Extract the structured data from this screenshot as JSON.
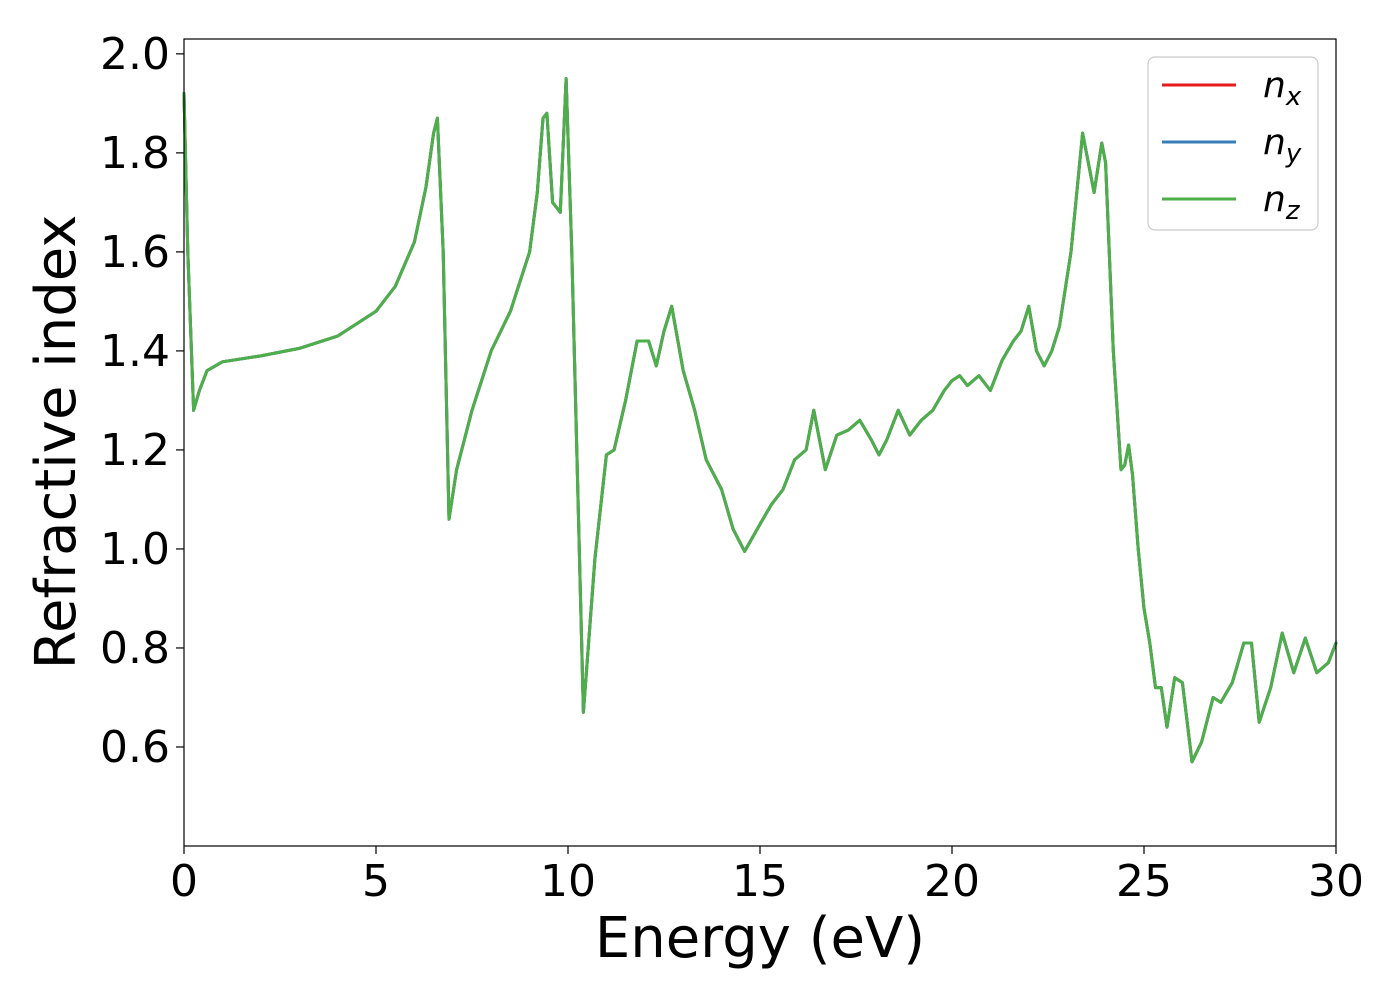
{
  "chart_data": {
    "type": "line",
    "xlabel": "Energy (eV)",
    "ylabel": "Refractive index",
    "xlim": [
      0,
      30
    ],
    "ylim": [
      0.4,
      2.03
    ],
    "xticks": [
      0,
      5,
      10,
      15,
      20,
      25,
      30
    ],
    "yticks": [
      0.6,
      0.8,
      1.0,
      1.2,
      1.4,
      1.6,
      1.8,
      2.0
    ],
    "xtick_labels": [
      "0",
      "5",
      "10",
      "15",
      "20",
      "25",
      "30"
    ],
    "ytick_labels": [
      "0.6",
      "0.8",
      "1.0",
      "1.2",
      "1.4",
      "1.6",
      "1.8",
      "2.0"
    ],
    "grid": false,
    "legend_position": "top-right",
    "series": [
      {
        "name_base": "n",
        "name_sub": "x",
        "color": "#e41a1c",
        "x": [
          0.0,
          0.1,
          0.25,
          0.4,
          0.6,
          1.0,
          2.0,
          3.0,
          4.0,
          5.0,
          5.5,
          6.0,
          6.3,
          6.5,
          6.6,
          6.75,
          6.9,
          7.1,
          7.5,
          8.0,
          8.5,
          9.0,
          9.2,
          9.35,
          9.45,
          9.6,
          9.8,
          9.95,
          10.1,
          10.4,
          10.7,
          11.0,
          11.2,
          11.5,
          11.8,
          12.1,
          12.3,
          12.5,
          12.7,
          13.0,
          13.3,
          13.6,
          14.0,
          14.3,
          14.6,
          15.0,
          15.3,
          15.6,
          15.9,
          16.2,
          16.4,
          16.7,
          17.0,
          17.3,
          17.6,
          17.9,
          18.1,
          18.3,
          18.6,
          18.9,
          19.2,
          19.5,
          19.8,
          20.0,
          20.2,
          20.4,
          20.7,
          21.0,
          21.3,
          21.6,
          21.8,
          22.0,
          22.2,
          22.4,
          22.6,
          22.8,
          23.1,
          23.4,
          23.7,
          23.9,
          24.0,
          24.2,
          24.4,
          24.5,
          24.6,
          24.7,
          24.85,
          25.0,
          25.15,
          25.3,
          25.45,
          25.6,
          25.8,
          26.0,
          26.25,
          26.5,
          26.8,
          27.0,
          27.3,
          27.6,
          27.8,
          28.0,
          28.3,
          28.6,
          28.9,
          29.2,
          29.5,
          29.8,
          30.0
        ],
        "y": [
          1.92,
          1.6,
          1.28,
          1.32,
          1.36,
          1.378,
          1.39,
          1.405,
          1.43,
          1.48,
          1.53,
          1.62,
          1.73,
          1.84,
          1.87,
          1.6,
          1.06,
          1.16,
          1.28,
          1.4,
          1.48,
          1.6,
          1.72,
          1.87,
          1.88,
          1.7,
          1.68,
          1.95,
          1.6,
          0.67,
          0.98,
          1.19,
          1.2,
          1.3,
          1.42,
          1.42,
          1.37,
          1.44,
          1.49,
          1.36,
          1.28,
          1.18,
          1.12,
          1.04,
          0.995,
          1.05,
          1.09,
          1.12,
          1.18,
          1.2,
          1.28,
          1.16,
          1.23,
          1.24,
          1.26,
          1.22,
          1.19,
          1.22,
          1.28,
          1.23,
          1.26,
          1.28,
          1.32,
          1.34,
          1.35,
          1.33,
          1.35,
          1.32,
          1.38,
          1.42,
          1.44,
          1.49,
          1.4,
          1.37,
          1.4,
          1.45,
          1.6,
          1.84,
          1.72,
          1.82,
          1.78,
          1.4,
          1.16,
          1.17,
          1.21,
          1.15,
          1.0,
          0.88,
          0.81,
          0.72,
          0.72,
          0.64,
          0.74,
          0.73,
          0.57,
          0.61,
          0.7,
          0.69,
          0.73,
          0.81,
          0.81,
          0.65,
          0.72,
          0.83,
          0.75,
          0.82,
          0.75,
          0.77,
          0.81
        ]
      },
      {
        "name_base": "n",
        "name_sub": "y",
        "color": "#377eb8",
        "x": [
          0.0,
          0.1,
          0.25,
          0.4,
          0.6,
          1.0,
          2.0,
          3.0,
          4.0,
          5.0,
          5.5,
          6.0,
          6.3,
          6.5,
          6.6,
          6.75,
          6.9,
          7.1,
          7.5,
          8.0,
          8.5,
          9.0,
          9.2,
          9.35,
          9.45,
          9.6,
          9.8,
          9.95,
          10.1,
          10.4,
          10.7,
          11.0,
          11.2,
          11.5,
          11.8,
          12.1,
          12.3,
          12.5,
          12.7,
          13.0,
          13.3,
          13.6,
          14.0,
          14.3,
          14.6,
          15.0,
          15.3,
          15.6,
          15.9,
          16.2,
          16.4,
          16.7,
          17.0,
          17.3,
          17.6,
          17.9,
          18.1,
          18.3,
          18.6,
          18.9,
          19.2,
          19.5,
          19.8,
          20.0,
          20.2,
          20.4,
          20.7,
          21.0,
          21.3,
          21.6,
          21.8,
          22.0,
          22.2,
          22.4,
          22.6,
          22.8,
          23.1,
          23.4,
          23.7,
          23.9,
          24.0,
          24.2,
          24.4,
          24.5,
          24.6,
          24.7,
          24.85,
          25.0,
          25.15,
          25.3,
          25.45,
          25.6,
          25.8,
          26.0,
          26.25,
          26.5,
          26.8,
          27.0,
          27.3,
          27.6,
          27.8,
          28.0,
          28.3,
          28.6,
          28.9,
          29.2,
          29.5,
          29.8,
          30.0
        ],
        "y": [
          1.92,
          1.6,
          1.28,
          1.32,
          1.36,
          1.378,
          1.39,
          1.405,
          1.43,
          1.48,
          1.53,
          1.62,
          1.73,
          1.84,
          1.87,
          1.6,
          1.06,
          1.16,
          1.28,
          1.4,
          1.48,
          1.6,
          1.72,
          1.87,
          1.88,
          1.7,
          1.68,
          1.95,
          1.6,
          0.67,
          0.98,
          1.19,
          1.2,
          1.3,
          1.42,
          1.42,
          1.37,
          1.44,
          1.49,
          1.36,
          1.28,
          1.18,
          1.12,
          1.04,
          0.995,
          1.05,
          1.09,
          1.12,
          1.18,
          1.2,
          1.28,
          1.16,
          1.23,
          1.24,
          1.26,
          1.22,
          1.19,
          1.22,
          1.28,
          1.23,
          1.26,
          1.28,
          1.32,
          1.34,
          1.35,
          1.33,
          1.35,
          1.32,
          1.38,
          1.42,
          1.44,
          1.49,
          1.4,
          1.37,
          1.4,
          1.45,
          1.6,
          1.84,
          1.72,
          1.82,
          1.78,
          1.4,
          1.16,
          1.17,
          1.21,
          1.15,
          1.0,
          0.88,
          0.81,
          0.72,
          0.72,
          0.64,
          0.74,
          0.73,
          0.57,
          0.61,
          0.7,
          0.69,
          0.73,
          0.81,
          0.81,
          0.65,
          0.72,
          0.83,
          0.75,
          0.82,
          0.75,
          0.77,
          0.81
        ]
      },
      {
        "name_base": "n",
        "name_sub": "z",
        "color": "#4daf4a",
        "x": [
          0.0,
          0.1,
          0.25,
          0.4,
          0.6,
          1.0,
          2.0,
          3.0,
          4.0,
          5.0,
          5.5,
          6.0,
          6.3,
          6.5,
          6.6,
          6.75,
          6.9,
          7.1,
          7.5,
          8.0,
          8.5,
          9.0,
          9.2,
          9.35,
          9.45,
          9.6,
          9.8,
          9.95,
          10.1,
          10.4,
          10.7,
          11.0,
          11.2,
          11.5,
          11.8,
          12.1,
          12.3,
          12.5,
          12.7,
          13.0,
          13.3,
          13.6,
          14.0,
          14.3,
          14.6,
          15.0,
          15.3,
          15.6,
          15.9,
          16.2,
          16.4,
          16.7,
          17.0,
          17.3,
          17.6,
          17.9,
          18.1,
          18.3,
          18.6,
          18.9,
          19.2,
          19.5,
          19.8,
          20.0,
          20.2,
          20.4,
          20.7,
          21.0,
          21.3,
          21.6,
          21.8,
          22.0,
          22.2,
          22.4,
          22.6,
          22.8,
          23.1,
          23.4,
          23.7,
          23.9,
          24.0,
          24.2,
          24.4,
          24.5,
          24.6,
          24.7,
          24.85,
          25.0,
          25.15,
          25.3,
          25.45,
          25.6,
          25.8,
          26.0,
          26.25,
          26.5,
          26.8,
          27.0,
          27.3,
          27.6,
          27.8,
          28.0,
          28.3,
          28.6,
          28.9,
          29.2,
          29.5,
          29.8,
          30.0
        ],
        "y": [
          1.92,
          1.6,
          1.28,
          1.32,
          1.36,
          1.378,
          1.39,
          1.405,
          1.43,
          1.48,
          1.53,
          1.62,
          1.73,
          1.84,
          1.87,
          1.6,
          1.06,
          1.16,
          1.28,
          1.4,
          1.48,
          1.6,
          1.72,
          1.87,
          1.88,
          1.7,
          1.68,
          1.95,
          1.6,
          0.67,
          0.98,
          1.19,
          1.2,
          1.3,
          1.42,
          1.42,
          1.37,
          1.44,
          1.49,
          1.36,
          1.28,
          1.18,
          1.12,
          1.04,
          0.995,
          1.05,
          1.09,
          1.12,
          1.18,
          1.2,
          1.28,
          1.16,
          1.23,
          1.24,
          1.26,
          1.22,
          1.19,
          1.22,
          1.28,
          1.23,
          1.26,
          1.28,
          1.32,
          1.34,
          1.35,
          1.33,
          1.35,
          1.32,
          1.38,
          1.42,
          1.44,
          1.49,
          1.4,
          1.37,
          1.4,
          1.45,
          1.6,
          1.84,
          1.72,
          1.82,
          1.78,
          1.4,
          1.16,
          1.17,
          1.21,
          1.15,
          1.0,
          0.88,
          0.81,
          0.72,
          0.72,
          0.64,
          0.74,
          0.73,
          0.57,
          0.61,
          0.7,
          0.69,
          0.73,
          0.81,
          0.81,
          0.65,
          0.72,
          0.83,
          0.75,
          0.82,
          0.75,
          0.77,
          0.81
        ]
      }
    ]
  }
}
